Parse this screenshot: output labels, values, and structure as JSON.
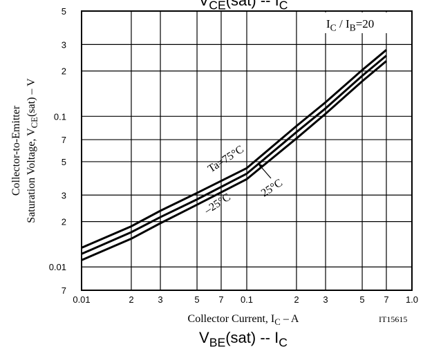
{
  "chart_data": {
    "type": "line",
    "title": [
      "V",
      "CE",
      "(sat)  --  I",
      "C"
    ],
    "bottom_title": [
      "V",
      "BE",
      "(sat)  --  I",
      "C"
    ],
    "x_label": [
      "Collector Current, I",
      "C",
      "  –  A"
    ],
    "y_label": [
      [
        "Collector-to-Emitter"
      ],
      [
        "Saturation Voltage, V",
        "CE",
        "(sat)  –  V"
      ]
    ],
    "condition": [
      "I",
      "C",
      " / I",
      "B",
      "=20"
    ],
    "figure_id": "IT15615",
    "x_scale": "log",
    "y_scale": "log",
    "grid": true,
    "color": "#000000",
    "xlim": [
      0.01,
      1.0
    ],
    "xticks": [
      0.01,
      {
        "value": 0.02,
        "label": "2"
      },
      {
        "value": 0.03,
        "label": "3"
      },
      {
        "value": 0.05,
        "label": "5"
      },
      {
        "value": 0.07,
        "label": "7"
      },
      0.1,
      {
        "value": 0.2,
        "label": "2"
      },
      {
        "value": 0.3,
        "label": "3"
      },
      {
        "value": 0.5,
        "label": "5"
      },
      {
        "value": 0.7,
        "label": "7"
      },
      {
        "value": 1.0,
        "label": "1.0"
      }
    ],
    "ylim": [
      0.007,
      0.5
    ],
    "yticks": [
      {
        "value": 0.007,
        "label": "7"
      },
      0.01,
      {
        "value": 0.02,
        "label": "2"
      },
      {
        "value": 0.03,
        "label": "3"
      },
      {
        "value": 0.05,
        "label": "5"
      },
      {
        "value": 0.07,
        "label": "7"
      },
      0.1,
      {
        "value": 0.2,
        "label": "2"
      },
      {
        "value": 0.3,
        "label": "3"
      },
      {
        "value": 0.5,
        "label": "5"
      }
    ],
    "x": [
      0.01,
      0.02,
      0.03,
      0.05,
      0.1,
      0.2,
      0.3,
      0.5,
      0.7
    ],
    "series": [
      {
        "name": "Ta=75°C",
        "values": [
          0.0134,
          0.0186,
          0.0236,
          0.031,
          0.0453,
          0.0862,
          0.124,
          0.203,
          0.276
        ]
      },
      {
        "name": "25°C",
        "values": [
          0.0122,
          0.017,
          0.0214,
          0.0281,
          0.0416,
          0.0785,
          0.113,
          0.186,
          0.253
        ]
      },
      {
        "name": "–25°C",
        "values": [
          0.0111,
          0.0154,
          0.0195,
          0.0259,
          0.0383,
          0.0713,
          0.104,
          0.171,
          0.233
        ]
      }
    ]
  }
}
